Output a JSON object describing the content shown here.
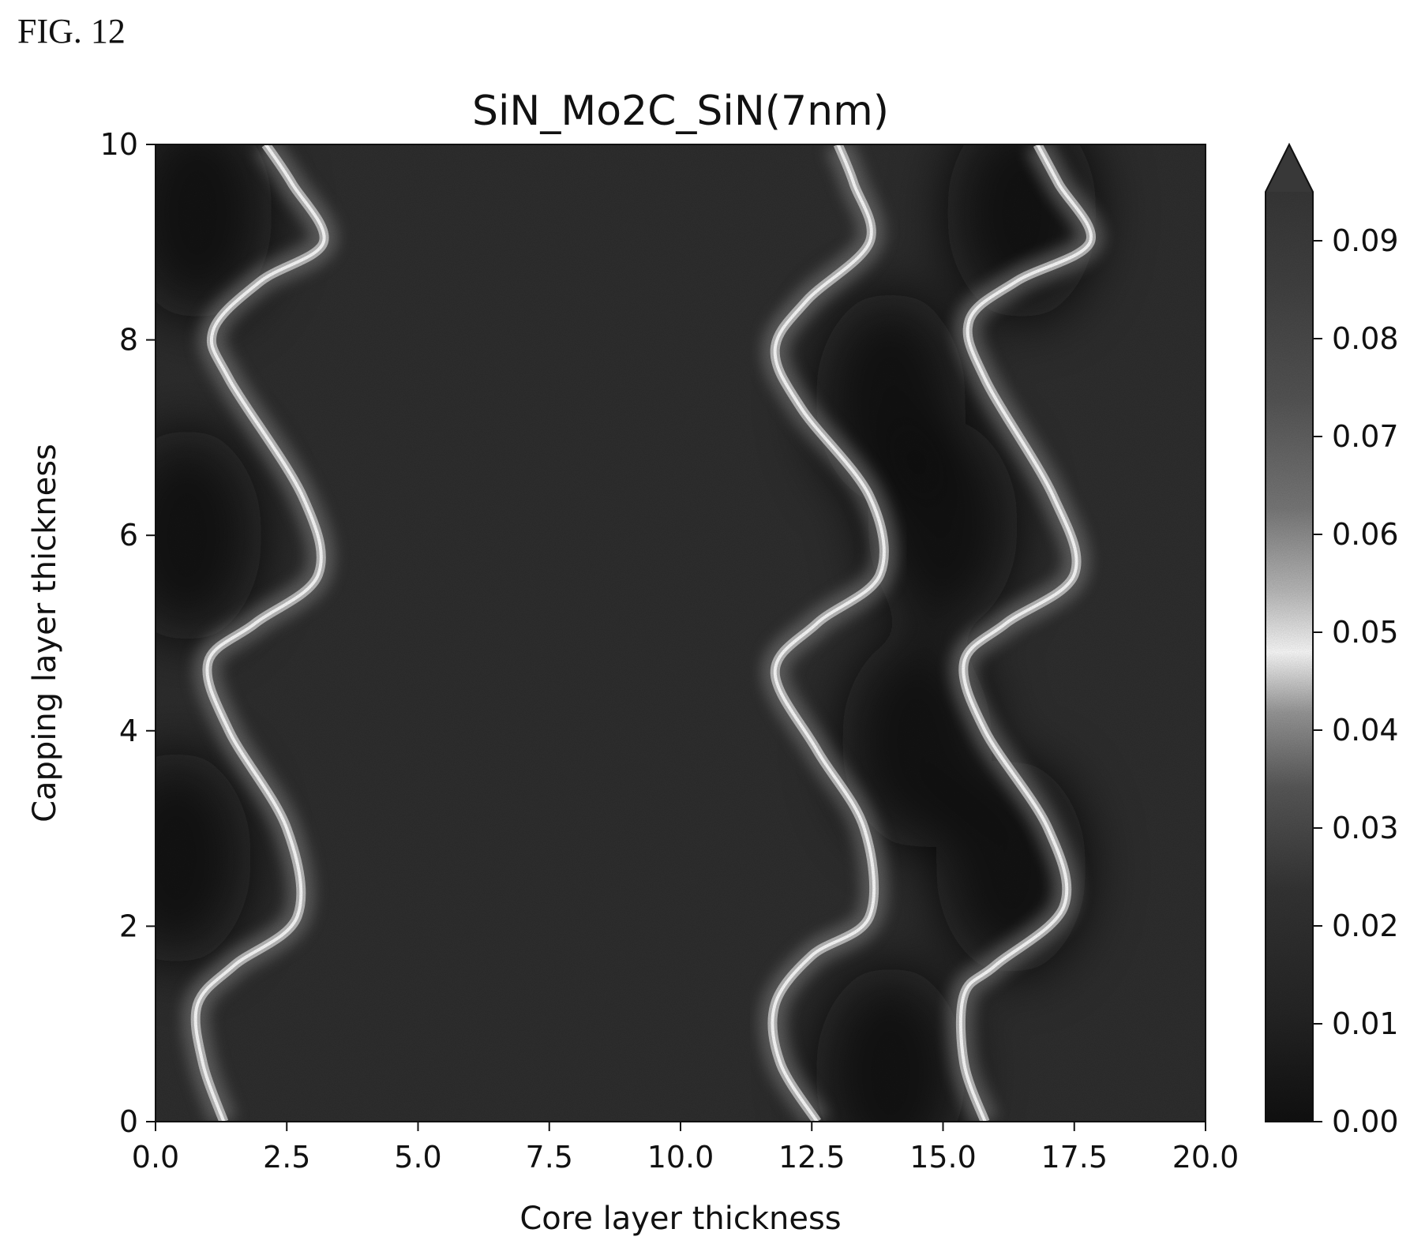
{
  "figure_label": "FIG. 12",
  "chart_data": {
    "type": "heatmap",
    "title": "SiN_Mo2C_SiN(7nm)",
    "xlabel": "Core layer thickness",
    "ylabel": "Capping layer thickness",
    "xlim": [
      0.0,
      20.0
    ],
    "ylim": [
      0,
      10
    ],
    "x_ticks": [
      "0.0",
      "2.5",
      "5.0",
      "7.5",
      "10.0",
      "12.5",
      "15.0",
      "17.5",
      "20.0"
    ],
    "y_ticks": [
      "0",
      "2",
      "4",
      "6",
      "8",
      "10"
    ],
    "colorbar": {
      "range": [
        0.0,
        0.095
      ],
      "extend": "max",
      "ticks": [
        "0.00",
        "0.01",
        "0.02",
        "0.03",
        "0.04",
        "0.05",
        "0.06",
        "0.07",
        "0.08",
        "0.09"
      ],
      "colormap": "grayscale, brightest near 0.05"
    },
    "contour_band": {
      "value": 0.05,
      "curves": [
        {
          "name": "",
          "points": [
            [
              1.3,
              0
            ],
            [
              0.9,
              0.6
            ],
            [
              0.8,
              1.2
            ],
            [
              1.5,
              1.6
            ],
            [
              2.7,
              2.1
            ],
            [
              2.5,
              3.0
            ],
            [
              1.4,
              4.0
            ],
            [
              1.0,
              4.7
            ],
            [
              1.9,
              5.1
            ],
            [
              3.1,
              5.6
            ],
            [
              2.8,
              6.4
            ],
            [
              1.4,
              7.6
            ],
            [
              1.1,
              8.1
            ],
            [
              2.0,
              8.6
            ],
            [
              3.2,
              9.0
            ],
            [
              2.6,
              9.6
            ],
            [
              2.1,
              10
            ]
          ]
        },
        {
          "name": "",
          "points": [
            [
              12.6,
              0
            ],
            [
              11.9,
              0.6
            ],
            [
              11.8,
              1.2
            ],
            [
              12.5,
              1.7
            ],
            [
              13.6,
              2.1
            ],
            [
              13.5,
              3.0
            ],
            [
              12.6,
              3.8
            ],
            [
              11.8,
              4.6
            ],
            [
              12.6,
              5.1
            ],
            [
              13.8,
              5.6
            ],
            [
              13.6,
              6.4
            ],
            [
              12.3,
              7.3
            ],
            [
              11.8,
              7.9
            ],
            [
              12.4,
              8.4
            ],
            [
              13.6,
              9.0
            ],
            [
              13.3,
              9.6
            ],
            [
              13.0,
              10
            ]
          ]
        },
        {
          "name": "",
          "points": [
            [
              15.8,
              0
            ],
            [
              15.4,
              0.6
            ],
            [
              15.4,
              1.3
            ],
            [
              16.0,
              1.6
            ],
            [
              17.3,
              2.2
            ],
            [
              17.0,
              3.0
            ],
            [
              15.8,
              4.0
            ],
            [
              15.4,
              4.7
            ],
            [
              16.2,
              5.1
            ],
            [
              17.5,
              5.6
            ],
            [
              17.1,
              6.4
            ],
            [
              15.8,
              7.6
            ],
            [
              15.5,
              8.2
            ],
            [
              16.4,
              8.6
            ],
            [
              17.8,
              9.0
            ],
            [
              17.2,
              9.6
            ],
            [
              16.8,
              10
            ]
          ]
        }
      ]
    },
    "dark_regions": [
      {
        "x": 0.8,
        "y": 9.3,
        "level": 0.004
      },
      {
        "x": 0.6,
        "y": 6.0,
        "level": 0.004
      },
      {
        "x": 0.4,
        "y": 2.7,
        "level": 0.004
      },
      {
        "x": 14.0,
        "y": 7.4,
        "level": 0.003
      },
      {
        "x": 14.5,
        "y": 3.9,
        "level": 0.003
      },
      {
        "x": 14.0,
        "y": 0.5,
        "level": 0.002
      },
      {
        "x": 15.0,
        "y": 6.1,
        "level": 0.004
      },
      {
        "x": 16.3,
        "y": 2.6,
        "level": 0.004
      },
      {
        "x": 16.5,
        "y": 9.3,
        "level": 0.004
      }
    ]
  }
}
